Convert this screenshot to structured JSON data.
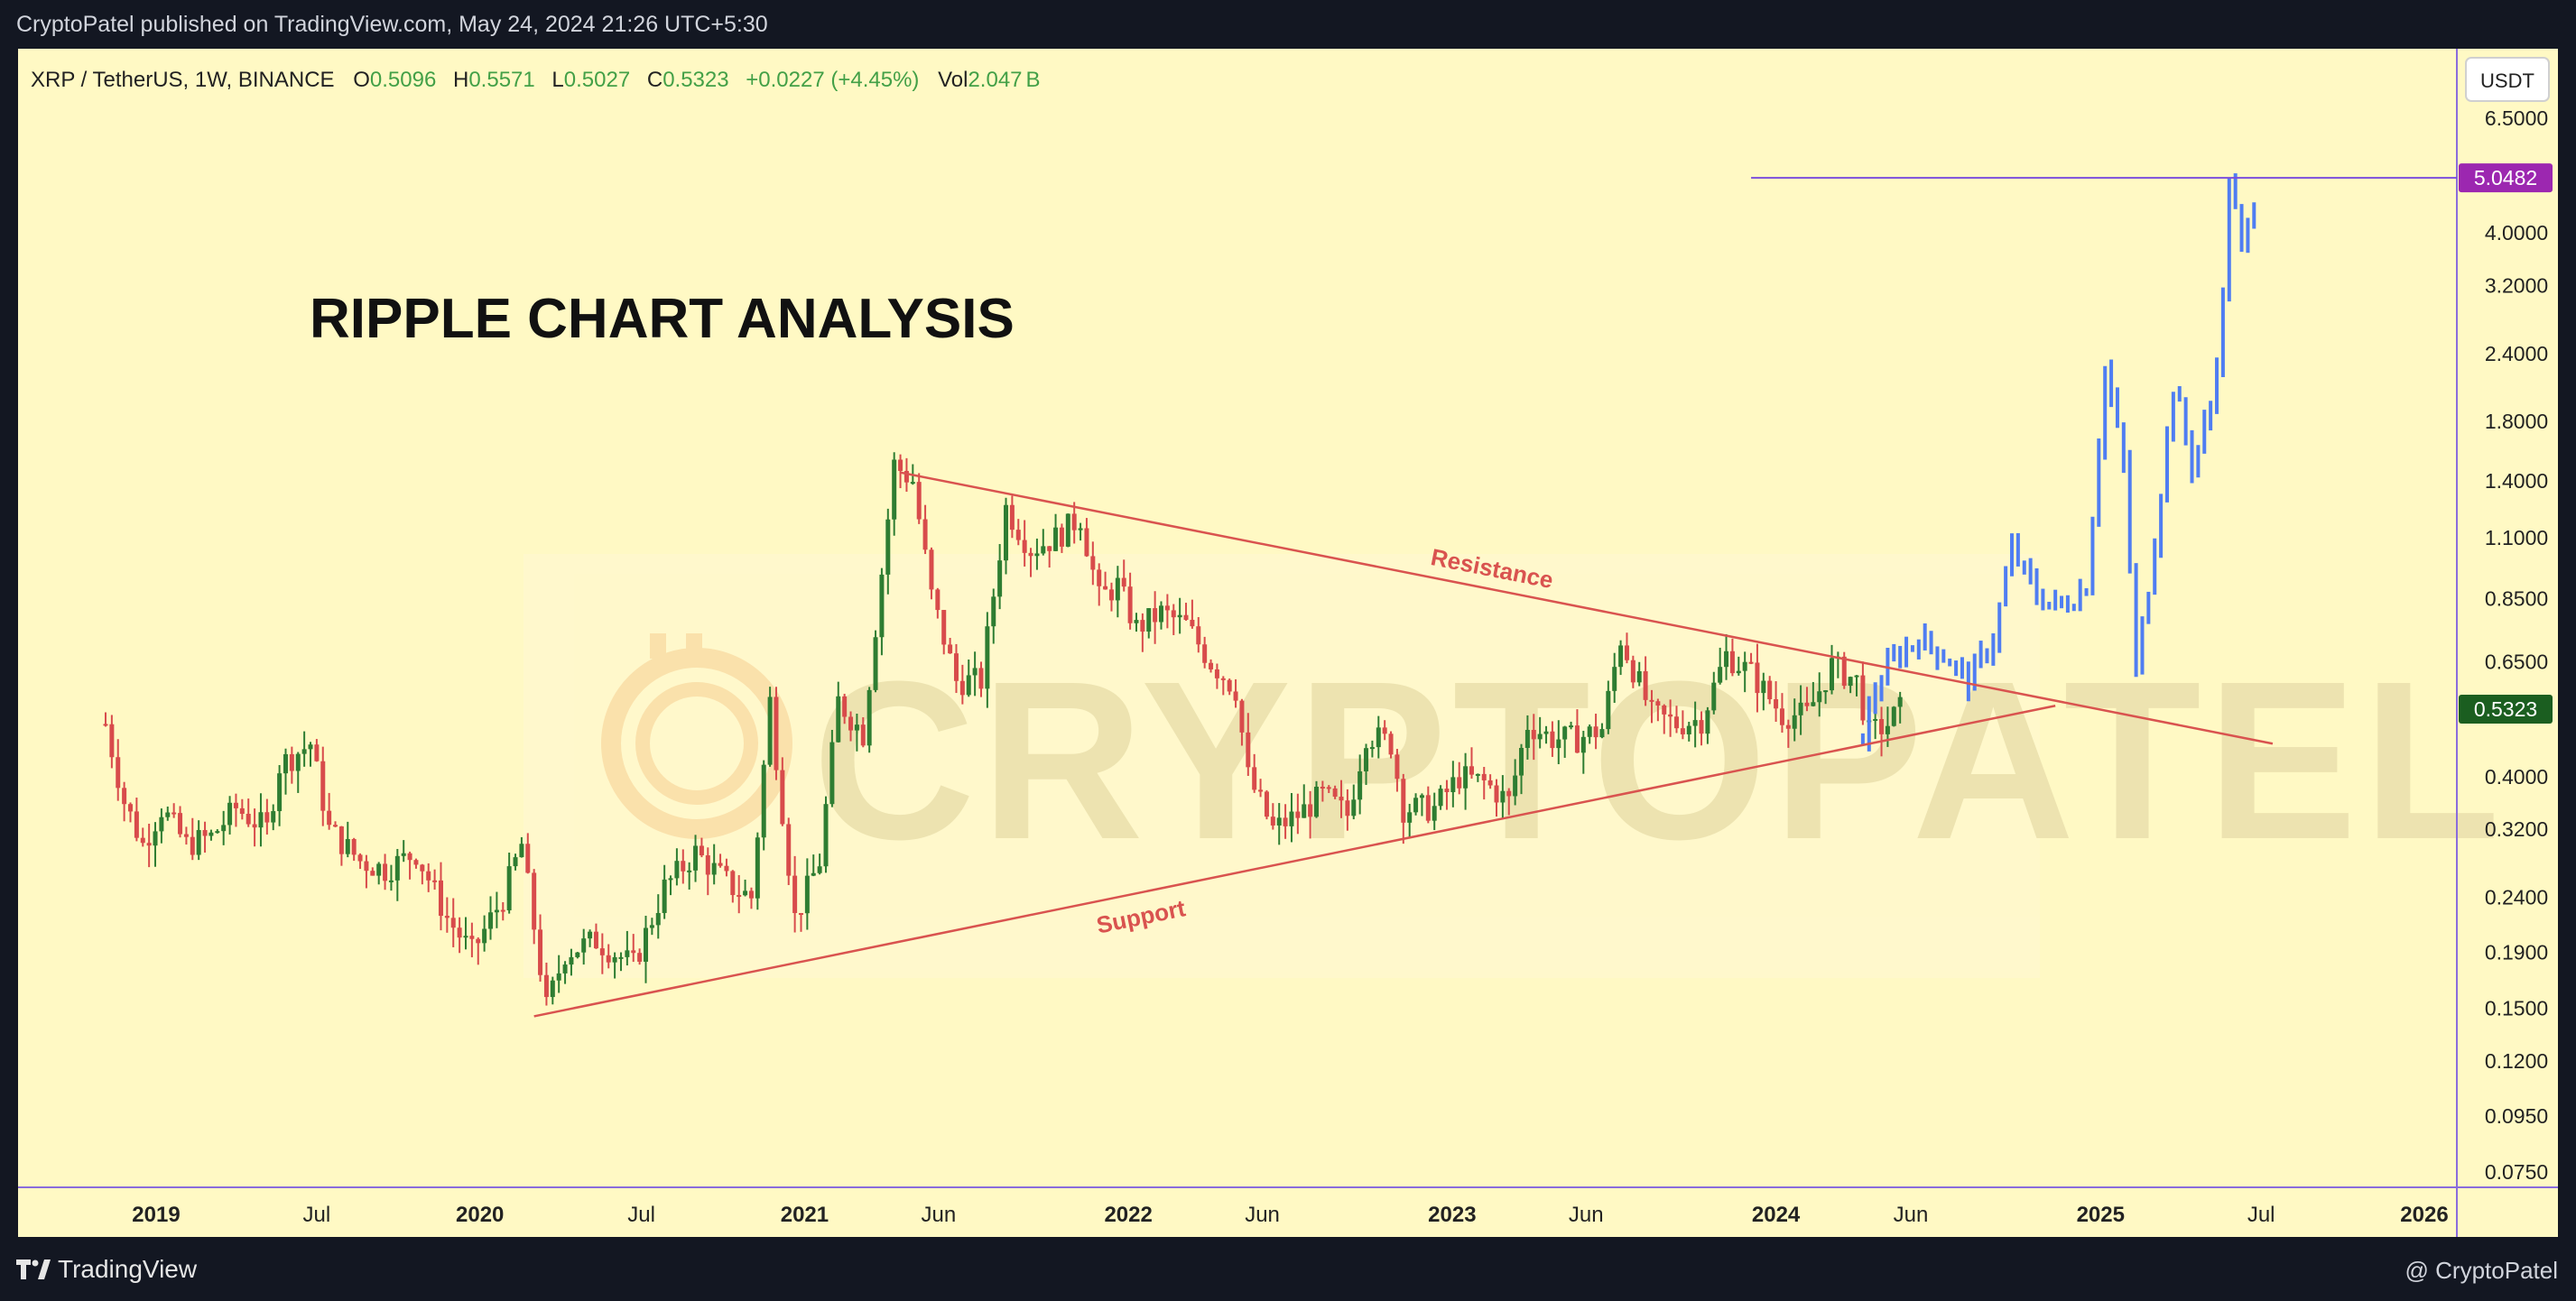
{
  "header": {
    "published": "CryptoPatel published on TradingView.com, May 24, 2024 21:26 UTC+5:30"
  },
  "legend": {
    "symbol": "XRP / TetherUS, 1W, BINANCE",
    "o_label": "O",
    "o_value": "0.5096",
    "h_label": "H",
    "h_value": "0.5571",
    "l_label": "L",
    "l_value": "0.5027",
    "c_label": "C",
    "c_value": "0.5323",
    "change": "+0.0227 (+4.45%)",
    "vol_label": "Vol",
    "vol_value": "2.047",
    "vol_unit": "B"
  },
  "footer": {
    "brand": "TradingView",
    "handle": "@ CryptoPatel"
  },
  "colors": {
    "background": "#fff9c4",
    "bull": "#2e7d32",
    "bear": "#d84b4b",
    "projection": "#4f7df2",
    "trendline": "#d9534f",
    "target_line": "#7b4fdc",
    "target_tag": "#9c27b0",
    "price_tag": "#1b5e20",
    "legend_value": "#4caf50"
  },
  "chart_data": {
    "type": "candlestick",
    "title": "RIPPLE CHART ANALYSIS",
    "watermark": "CRYPTOPATEL",
    "yscale": "log",
    "y_unit": "USDT",
    "ylim": [
      0.07,
      7.0
    ],
    "y_ticks": [
      "6.5000",
      "4.0000",
      "3.2000",
      "2.4000",
      "1.8000",
      "1.4000",
      "1.1000",
      "0.8500",
      "0.6500",
      "0.4000",
      "0.3200",
      "0.2400",
      "0.1900",
      "0.1500",
      "0.1200",
      "0.0950",
      "0.0750"
    ],
    "x_ticks": [
      {
        "label": "2019",
        "date": "2019-01-01",
        "bold": true
      },
      {
        "label": "Jul",
        "date": "2019-07-01",
        "bold": false
      },
      {
        "label": "2020",
        "date": "2020-01-01",
        "bold": true
      },
      {
        "label": "Jul",
        "date": "2020-07-01",
        "bold": false
      },
      {
        "label": "2021",
        "date": "2021-01-01",
        "bold": true
      },
      {
        "label": "Jun",
        "date": "2021-06-01",
        "bold": false
      },
      {
        "label": "2022",
        "date": "2022-01-01",
        "bold": true
      },
      {
        "label": "Jun",
        "date": "2022-06-01",
        "bold": false
      },
      {
        "label": "2023",
        "date": "2023-01-01",
        "bold": true
      },
      {
        "label": "Jun",
        "date": "2023-06-01",
        "bold": false
      },
      {
        "label": "2024",
        "date": "2024-01-01",
        "bold": true
      },
      {
        "label": "Jun",
        "date": "2024-06-01",
        "bold": false
      },
      {
        "label": "2025",
        "date": "2025-01-01",
        "bold": true
      },
      {
        "label": "Jul",
        "date": "2025-07-01",
        "bold": false
      },
      {
        "label": "2026",
        "date": "2026-01-01",
        "bold": true
      }
    ],
    "current_price": "0.5323",
    "target_price": "5.0482",
    "actual_path": [
      [
        "2018-11-05",
        0.5
      ],
      [
        "2018-11-26",
        0.36
      ],
      [
        "2018-12-17",
        0.3
      ],
      [
        "2019-01-07",
        0.35
      ],
      [
        "2019-02-04",
        0.3
      ],
      [
        "2019-03-04",
        0.31
      ],
      [
        "2019-04-01",
        0.35
      ],
      [
        "2019-05-06",
        0.32
      ],
      [
        "2019-05-20",
        0.42
      ],
      [
        "2019-06-24",
        0.46
      ],
      [
        "2019-07-15",
        0.32
      ],
      [
        "2019-08-19",
        0.28
      ],
      [
        "2019-09-16",
        0.27
      ],
      [
        "2019-10-21",
        0.29
      ],
      [
        "2019-11-25",
        0.22
      ],
      [
        "2019-12-23",
        0.19
      ],
      [
        "2020-01-27",
        0.24
      ],
      [
        "2020-02-17",
        0.3
      ],
      [
        "2020-03-16",
        0.15
      ],
      [
        "2020-04-06",
        0.19
      ],
      [
        "2020-05-11",
        0.2
      ],
      [
        "2020-06-22",
        0.18
      ],
      [
        "2020-07-27",
        0.25
      ],
      [
        "2020-08-31",
        0.29
      ],
      [
        "2020-10-12",
        0.25
      ],
      [
        "2020-11-02",
        0.24
      ],
      [
        "2020-11-23",
        0.55
      ],
      [
        "2020-12-21",
        0.22
      ],
      [
        "2021-01-18",
        0.28
      ],
      [
        "2021-02-08",
        0.55
      ],
      [
        "2021-03-08",
        0.48
      ],
      [
        "2021-04-12",
        1.5
      ],
      [
        "2021-05-03",
        1.4
      ],
      [
        "2021-05-24",
        0.86
      ],
      [
        "2021-06-21",
        0.6
      ],
      [
        "2021-07-19",
        0.6
      ],
      [
        "2021-08-16",
        1.25
      ],
      [
        "2021-09-13",
        1.05
      ],
      [
        "2021-10-11",
        1.1
      ],
      [
        "2021-11-08",
        1.2
      ],
      [
        "2021-11-29",
        0.85
      ],
      [
        "2021-12-20",
        0.9
      ],
      [
        "2022-01-10",
        0.75
      ],
      [
        "2022-02-07",
        0.8
      ],
      [
        "2022-03-07",
        0.76
      ],
      [
        "2022-04-04",
        0.65
      ],
      [
        "2022-05-02",
        0.58
      ],
      [
        "2022-05-16",
        0.4
      ],
      [
        "2022-06-13",
        0.32
      ],
      [
        "2022-07-11",
        0.34
      ],
      [
        "2022-08-08",
        0.37
      ],
      [
        "2022-09-05",
        0.34
      ],
      [
        "2022-09-26",
        0.48
      ],
      [
        "2022-10-24",
        0.46
      ],
      [
        "2022-11-07",
        0.35
      ],
      [
        "2022-12-12",
        0.35
      ],
      [
        "2023-01-09",
        0.4
      ],
      [
        "2023-02-06",
        0.39
      ],
      [
        "2023-03-06",
        0.36
      ],
      [
        "2023-03-27",
        0.5
      ],
      [
        "2023-04-24",
        0.47
      ],
      [
        "2023-05-22",
        0.47
      ],
      [
        "2023-06-19",
        0.49
      ],
      [
        "2023-07-10",
        0.72
      ],
      [
        "2023-08-14",
        0.52
      ],
      [
        "2023-09-11",
        0.5
      ],
      [
        "2023-10-09",
        0.51
      ],
      [
        "2023-11-06",
        0.67
      ],
      [
        "2023-12-04",
        0.62
      ],
      [
        "2024-01-08",
        0.52
      ],
      [
        "2024-02-05",
        0.52
      ],
      [
        "2024-03-04",
        0.64
      ],
      [
        "2024-04-01",
        0.6
      ],
      [
        "2024-04-15",
        0.48
      ],
      [
        "2024-05-06",
        0.5
      ],
      [
        "2024-05-20",
        0.5323
      ]
    ],
    "projection_path": [
      [
        "2024-04-08",
        0.48
      ],
      [
        "2024-04-22",
        0.58
      ],
      [
        "2024-05-13",
        0.66
      ],
      [
        "2024-06-10",
        0.72
      ],
      [
        "2024-07-08",
        0.67
      ],
      [
        "2024-08-05",
        0.6
      ],
      [
        "2024-09-02",
        0.72
      ],
      [
        "2024-09-23",
        1.05
      ],
      [
        "2024-10-21",
        0.86
      ],
      [
        "2024-11-18",
        0.82
      ],
      [
        "2024-12-16",
        0.9
      ],
      [
        "2025-01-06",
        2.25
      ],
      [
        "2025-01-27",
        1.5
      ],
      [
        "2025-02-10",
        0.62
      ],
      [
        "2025-03-03",
        1.1
      ],
      [
        "2025-03-24",
        2.1
      ],
      [
        "2025-04-14",
        1.5
      ],
      [
        "2025-05-05",
        1.9
      ],
      [
        "2025-05-19",
        3.0
      ],
      [
        "2025-05-26",
        5.0482
      ],
      [
        "2025-06-09",
        3.7
      ],
      [
        "2025-06-23",
        4.6
      ]
    ],
    "trendlines": [
      {
        "name": "Resistance",
        "from": [
          "2021-04-19",
          1.45
        ],
        "to": [
          "2025-07-14",
          0.46
        ]
      },
      {
        "name": "Support",
        "from": [
          "2020-03-02",
          0.145
        ],
        "to": [
          "2024-11-11",
          0.54
        ]
      }
    ],
    "target_line": {
      "from": "2023-12-04",
      "value": 5.0482
    }
  }
}
